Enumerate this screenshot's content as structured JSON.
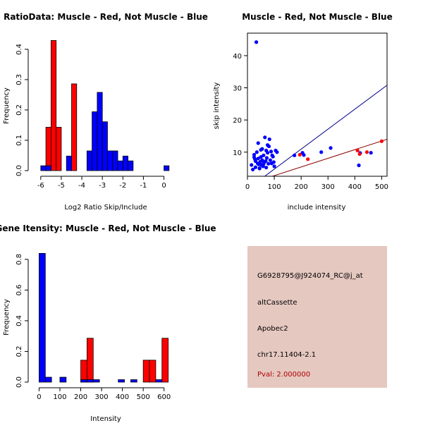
{
  "chart_data": [
    {
      "type": "histogram",
      "title": "RatioData: Muscle - Red, Not Muscle - Blue",
      "xlabel": "Log2 Ratio Skip/Include",
      "ylabel": "Frequency",
      "xlim": [
        -6.2,
        0.6
      ],
      "ylim": [
        0,
        0.43
      ],
      "xticks": [
        -6,
        -5,
        -4,
        -3,
        -2,
        -1,
        0
      ],
      "yticks": [
        0.0,
        0.1,
        0.2,
        0.3,
        0.4
      ],
      "bin_width": 0.25,
      "series": [
        {
          "name": "Muscle",
          "color": "#ff0000",
          "bins": [
            [
              -5.75,
              0.143
            ],
            [
              -5.5,
              0.429
            ],
            [
              -5.25,
              0.143
            ],
            [
              -4.5,
              0.286
            ]
          ]
        },
        {
          "name": "Not Muscle",
          "color": "#0000ff",
          "bins": [
            [
              -6.0,
              0.016
            ],
            [
              -5.75,
              0.016
            ],
            [
              -4.75,
              0.048
            ],
            [
              -3.75,
              0.065
            ],
            [
              -3.5,
              0.194
            ],
            [
              -3.25,
              0.258
            ],
            [
              -3.0,
              0.161
            ],
            [
              -2.75,
              0.065
            ],
            [
              -2.5,
              0.065
            ],
            [
              -2.25,
              0.032
            ],
            [
              -2.0,
              0.048
            ],
            [
              -1.75,
              0.032
            ],
            [
              0.0,
              0.016
            ]
          ]
        }
      ]
    },
    {
      "type": "scatter",
      "title": "Muscle - Red, Not Muscle - Blue",
      "xlabel": "include intensity",
      "ylabel": "skip intensity",
      "xlim": [
        0,
        520
      ],
      "ylim": [
        2.5,
        47
      ],
      "xticks": [
        0,
        100,
        200,
        300,
        400,
        500
      ],
      "yticks": [
        10,
        20,
        30,
        40
      ],
      "lines": [
        {
          "name": "Not Muscle fit",
          "color": "#00008b",
          "x": [
            0,
            520
          ],
          "y": [
            -1.5,
            30.8
          ]
        },
        {
          "name": "Muscle fit",
          "color": "#8b0000",
          "x": [
            0,
            520
          ],
          "y": [
            0.0,
            14.0
          ]
        }
      ],
      "series": [
        {
          "name": "Muscle",
          "color": "#ff0000",
          "x": [
            195,
            225,
            410,
            418,
            445,
            500
          ],
          "y": [
            9.2,
            7.8,
            10.5,
            9.4,
            10.0,
            13.4
          ]
        },
        {
          "name": "Not Muscle",
          "color": "#0000ff",
          "x": [
            33,
            15,
            20,
            25,
            28,
            30,
            35,
            38,
            40,
            42,
            45,
            48,
            50,
            52,
            55,
            58,
            60,
            62,
            65,
            68,
            70,
            72,
            75,
            78,
            80,
            82,
            85,
            88,
            90,
            92,
            95,
            98,
            100,
            105,
            110,
            40,
            55,
            75,
            60,
            70,
            175,
            205,
            210,
            275,
            310,
            415,
            420,
            460,
            30,
            25,
            45,
            50
          ],
          "y": [
            44.2,
            6.0,
            4.6,
            9.2,
            7.8,
            5.3,
            10.0,
            6.5,
            8.0,
            6.2,
            5.0,
            7.0,
            8.5,
            6.0,
            7.5,
            5.6,
            9.0,
            6.8,
            14.6,
            7.2,
            10.5,
            8.2,
            9.8,
            6.4,
            11.8,
            14.0,
            7.5,
            10.2,
            6.5,
            9.0,
            8.6,
            6.9,
            5.6,
            10.5,
            10.0,
            12.8,
            11.0,
            12.2,
            6.3,
            5.2,
            9.0,
            9.8,
            9.1,
            10.0,
            11.3,
            5.9,
            9.7,
            9.8,
            7.2,
            8.4,
            4.9,
            10.7
          ]
        }
      ]
    },
    {
      "type": "histogram",
      "title": "Gene Itensity: Muscle - Red, Not Muscle - Blue",
      "xlabel": "Intensity",
      "ylabel": "Frequency",
      "xlim": [
        -15,
        645
      ],
      "ylim": [
        0,
        0.85
      ],
      "xticks": [
        0,
        100,
        200,
        300,
        400,
        500,
        600
      ],
      "yticks": [
        0.0,
        0.2,
        0.4,
        0.6,
        0.8
      ],
      "bin_width": 30,
      "series": [
        {
          "name": "Muscle",
          "color": "#ff0000",
          "bins": [
            [
              200,
              0.143
            ],
            [
              230,
              0.286
            ],
            [
              500,
              0.143
            ],
            [
              530,
              0.143
            ],
            [
              590,
              0.286
            ]
          ]
        },
        {
          "name": "Not Muscle",
          "color": "#0000ff",
          "bins": [
            [
              0,
              0.839
            ],
            [
              30,
              0.032
            ],
            [
              100,
              0.032
            ],
            [
              200,
              0.016
            ],
            [
              230,
              0.016
            ],
            [
              260,
              0.016
            ],
            [
              380,
              0.016
            ],
            [
              440,
              0.016
            ],
            [
              560,
              0.016
            ]
          ]
        }
      ]
    }
  ],
  "info": {
    "probe_id": "G6928795@J924074_RC@j_at",
    "event_type": "altCassette",
    "gene": "Apobec2",
    "location": "chr17.11404-2.1",
    "pval": "Pval: 2.000000"
  }
}
